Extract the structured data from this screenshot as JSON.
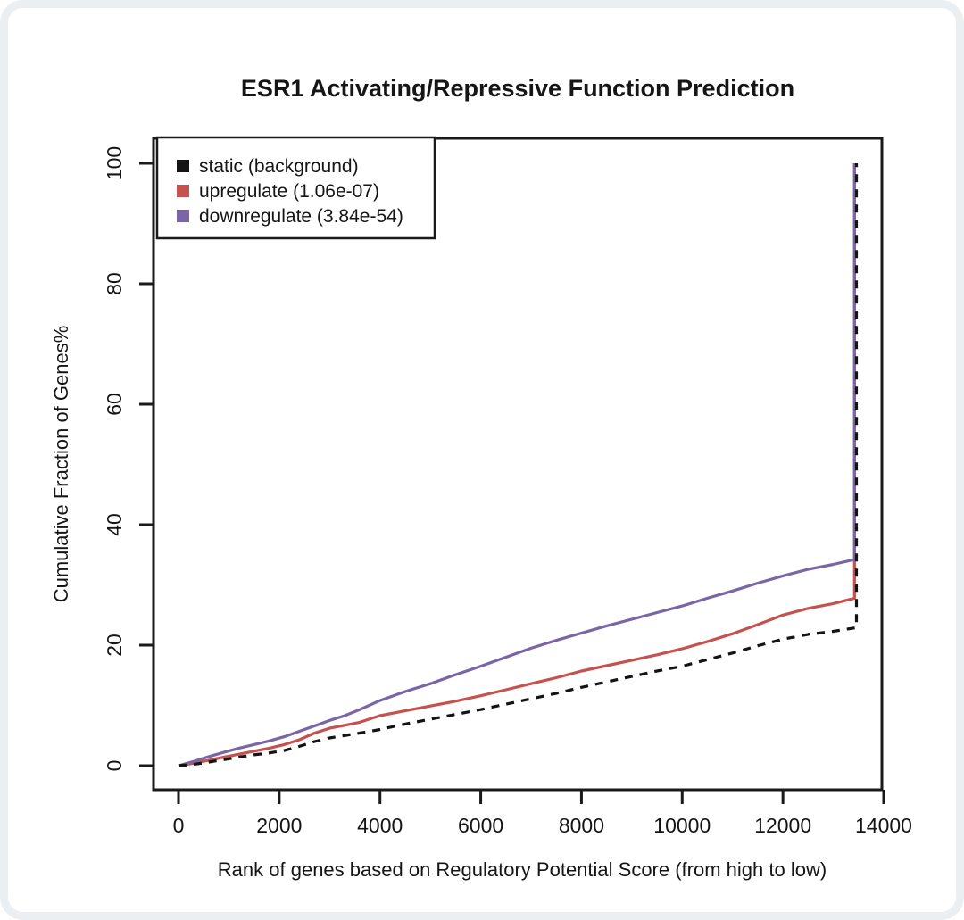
{
  "page": {
    "background": "#ffffff"
  },
  "chart_data": {
    "type": "line",
    "title": "ESR1 Activating/Repressive Function Prediction",
    "xlabel": "Rank of genes based on Regulatory Potential Score (from high to low)",
    "ylabel": "Cumulative Fraction of Genes%",
    "xlim": [
      0,
      14000
    ],
    "ylim": [
      0,
      100
    ],
    "xticks": [
      0,
      2000,
      4000,
      6000,
      8000,
      10000,
      12000,
      14000
    ],
    "yticks": [
      0,
      20,
      40,
      60,
      80,
      100
    ],
    "grid": false,
    "legend_position": "top-left",
    "box_color": "#1a1a1a",
    "draw_order": [
      "upregulate",
      "downregulate",
      "static"
    ],
    "series": [
      {
        "name": "static",
        "label": "static (background)",
        "color": "#141414",
        "dash": "9,8",
        "points": [
          [
            0,
            0
          ],
          [
            300,
            0.2
          ],
          [
            600,
            0.6
          ],
          [
            900,
            1.0
          ],
          [
            1200,
            1.4
          ],
          [
            1500,
            1.8
          ],
          [
            1800,
            2.1
          ],
          [
            2100,
            2.5
          ],
          [
            2400,
            3.2
          ],
          [
            2700,
            4.0
          ],
          [
            3000,
            4.6
          ],
          [
            3300,
            5.0
          ],
          [
            3600,
            5.4
          ],
          [
            4000,
            6.0
          ],
          [
            4500,
            6.9
          ],
          [
            5000,
            7.7
          ],
          [
            5500,
            8.5
          ],
          [
            6000,
            9.3
          ],
          [
            6500,
            10.2
          ],
          [
            7000,
            11.1
          ],
          [
            7500,
            12.0
          ],
          [
            8000,
            13.0
          ],
          [
            8500,
            13.9
          ],
          [
            9000,
            14.8
          ],
          [
            9500,
            15.7
          ],
          [
            10000,
            16.5
          ],
          [
            10500,
            17.6
          ],
          [
            11000,
            18.7
          ],
          [
            11500,
            19.9
          ],
          [
            12000,
            21.0
          ],
          [
            12500,
            21.8
          ],
          [
            13000,
            22.3
          ],
          [
            13460,
            22.9
          ],
          [
            13460,
            100
          ]
        ]
      },
      {
        "name": "upregulate",
        "label": "upregulate (1.06e-07)",
        "color": "#c4524e",
        "dash": null,
        "points": [
          [
            0,
            0
          ],
          [
            300,
            0.4
          ],
          [
            600,
            0.9
          ],
          [
            900,
            1.4
          ],
          [
            1200,
            1.9
          ],
          [
            1500,
            2.4
          ],
          [
            1800,
            2.9
          ],
          [
            2100,
            3.5
          ],
          [
            2400,
            4.3
          ],
          [
            2700,
            5.4
          ],
          [
            3000,
            6.2
          ],
          [
            3300,
            6.7
          ],
          [
            3600,
            7.2
          ],
          [
            4000,
            8.3
          ],
          [
            4500,
            9.1
          ],
          [
            5000,
            9.9
          ],
          [
            5500,
            10.7
          ],
          [
            6000,
            11.6
          ],
          [
            6500,
            12.6
          ],
          [
            7000,
            13.6
          ],
          [
            7500,
            14.6
          ],
          [
            8000,
            15.7
          ],
          [
            8500,
            16.6
          ],
          [
            9000,
            17.5
          ],
          [
            9500,
            18.4
          ],
          [
            10000,
            19.4
          ],
          [
            10500,
            20.6
          ],
          [
            11000,
            21.9
          ],
          [
            11500,
            23.4
          ],
          [
            12000,
            25.0
          ],
          [
            12500,
            26.1
          ],
          [
            13000,
            26.9
          ],
          [
            13420,
            27.8
          ],
          [
            13420,
            100
          ]
        ]
      },
      {
        "name": "downregulate",
        "label": "downregulate (3.84e-54)",
        "color": "#7a66a5",
        "dash": null,
        "points": [
          [
            0,
            0
          ],
          [
            300,
            0.7
          ],
          [
            600,
            1.5
          ],
          [
            900,
            2.2
          ],
          [
            1200,
            2.9
          ],
          [
            1500,
            3.5
          ],
          [
            1800,
            4.1
          ],
          [
            2100,
            4.8
          ],
          [
            2400,
            5.7
          ],
          [
            2700,
            6.6
          ],
          [
            3000,
            7.5
          ],
          [
            3300,
            8.3
          ],
          [
            3600,
            9.3
          ],
          [
            4000,
            10.8
          ],
          [
            4500,
            12.3
          ],
          [
            5000,
            13.6
          ],
          [
            5500,
            15.1
          ],
          [
            6000,
            16.5
          ],
          [
            6500,
            18.0
          ],
          [
            7000,
            19.5
          ],
          [
            7500,
            20.8
          ],
          [
            8000,
            22.0
          ],
          [
            8500,
            23.2
          ],
          [
            9000,
            24.3
          ],
          [
            9500,
            25.4
          ],
          [
            10000,
            26.5
          ],
          [
            10500,
            27.8
          ],
          [
            11000,
            29.0
          ],
          [
            11500,
            30.3
          ],
          [
            12000,
            31.5
          ],
          [
            12500,
            32.6
          ],
          [
            13000,
            33.4
          ],
          [
            13420,
            34.2
          ],
          [
            13420,
            100
          ]
        ]
      }
    ]
  }
}
